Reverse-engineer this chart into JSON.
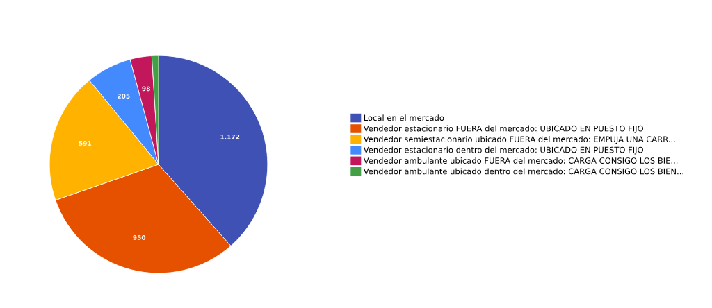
{
  "chart_data": {
    "type": "pie",
    "categories": [
      "Local en el mercado",
      "Vendedor estacionario FUERA del mercado: UBICADO EN PUESTO FIJO",
      "Vendedor semiestacionario ubicado FUERA del mercado: EMPUJA UNA CARR...",
      "Vendedor estacionario dentro del mercado: UBICADO EN PUESTO FIJO",
      "Vendedor ambulante ubicado FUERA del mercado: CARGA CONSIGO LOS BIE...",
      "Vendedor ambulante ubicado dentro del mercado: CARGA CONSIGO LOS BIEN..."
    ],
    "values": [
      1172,
      950,
      591,
      205,
      98,
      30
    ],
    "value_labels": [
      "1.172",
      "950",
      "591",
      "205",
      "98",
      null
    ],
    "colors": [
      "#3f51b5",
      "#e65100",
      "#ffb300",
      "#448aff",
      "#c2185b",
      "#43a047"
    ],
    "legend": "right"
  }
}
